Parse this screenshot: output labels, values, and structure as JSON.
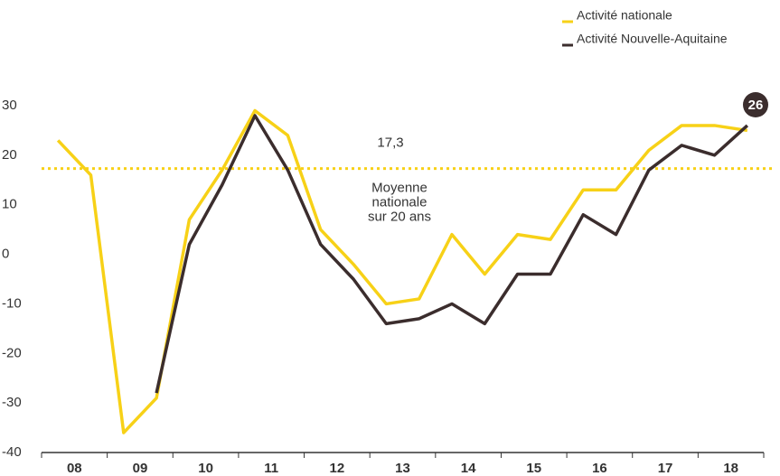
{
  "chart_data": {
    "type": "line",
    "categories": [
      "08",
      null,
      "09",
      null,
      "10",
      null,
      "11",
      null,
      "12",
      null,
      "13",
      null,
      "14",
      null,
      "15",
      null,
      "16",
      null,
      "17",
      null,
      "18",
      null
    ],
    "series": [
      {
        "name": "Activité nationale",
        "color": "#f7d117",
        "values": [
          23,
          16,
          -36,
          -29,
          7,
          17,
          29,
          24,
          5,
          -2,
          -10,
          -9,
          4,
          -4,
          4,
          3,
          13,
          13,
          21,
          26,
          26,
          25
        ]
      },
      {
        "name": "Activité Nouvelle-Aquitaine",
        "color": "#3b2d2d",
        "values": [
          null,
          null,
          null,
          -28,
          2,
          14,
          28,
          17,
          2,
          -5,
          -14,
          -13,
          -10,
          -14,
          -4,
          -4,
          8,
          4,
          17,
          22,
          20,
          26
        ]
      }
    ],
    "ylim": [
      -40,
      30
    ],
    "yticks": [
      30,
      20,
      10,
      0,
      -10,
      -20,
      -30,
      -40
    ],
    "reference_line": {
      "value": 17.3,
      "label": "17,3",
      "color": "#f7d117",
      "annotation": [
        "Moyenne",
        "nationale",
        "sur 20 ans"
      ]
    },
    "legend": "top-right"
  }
}
